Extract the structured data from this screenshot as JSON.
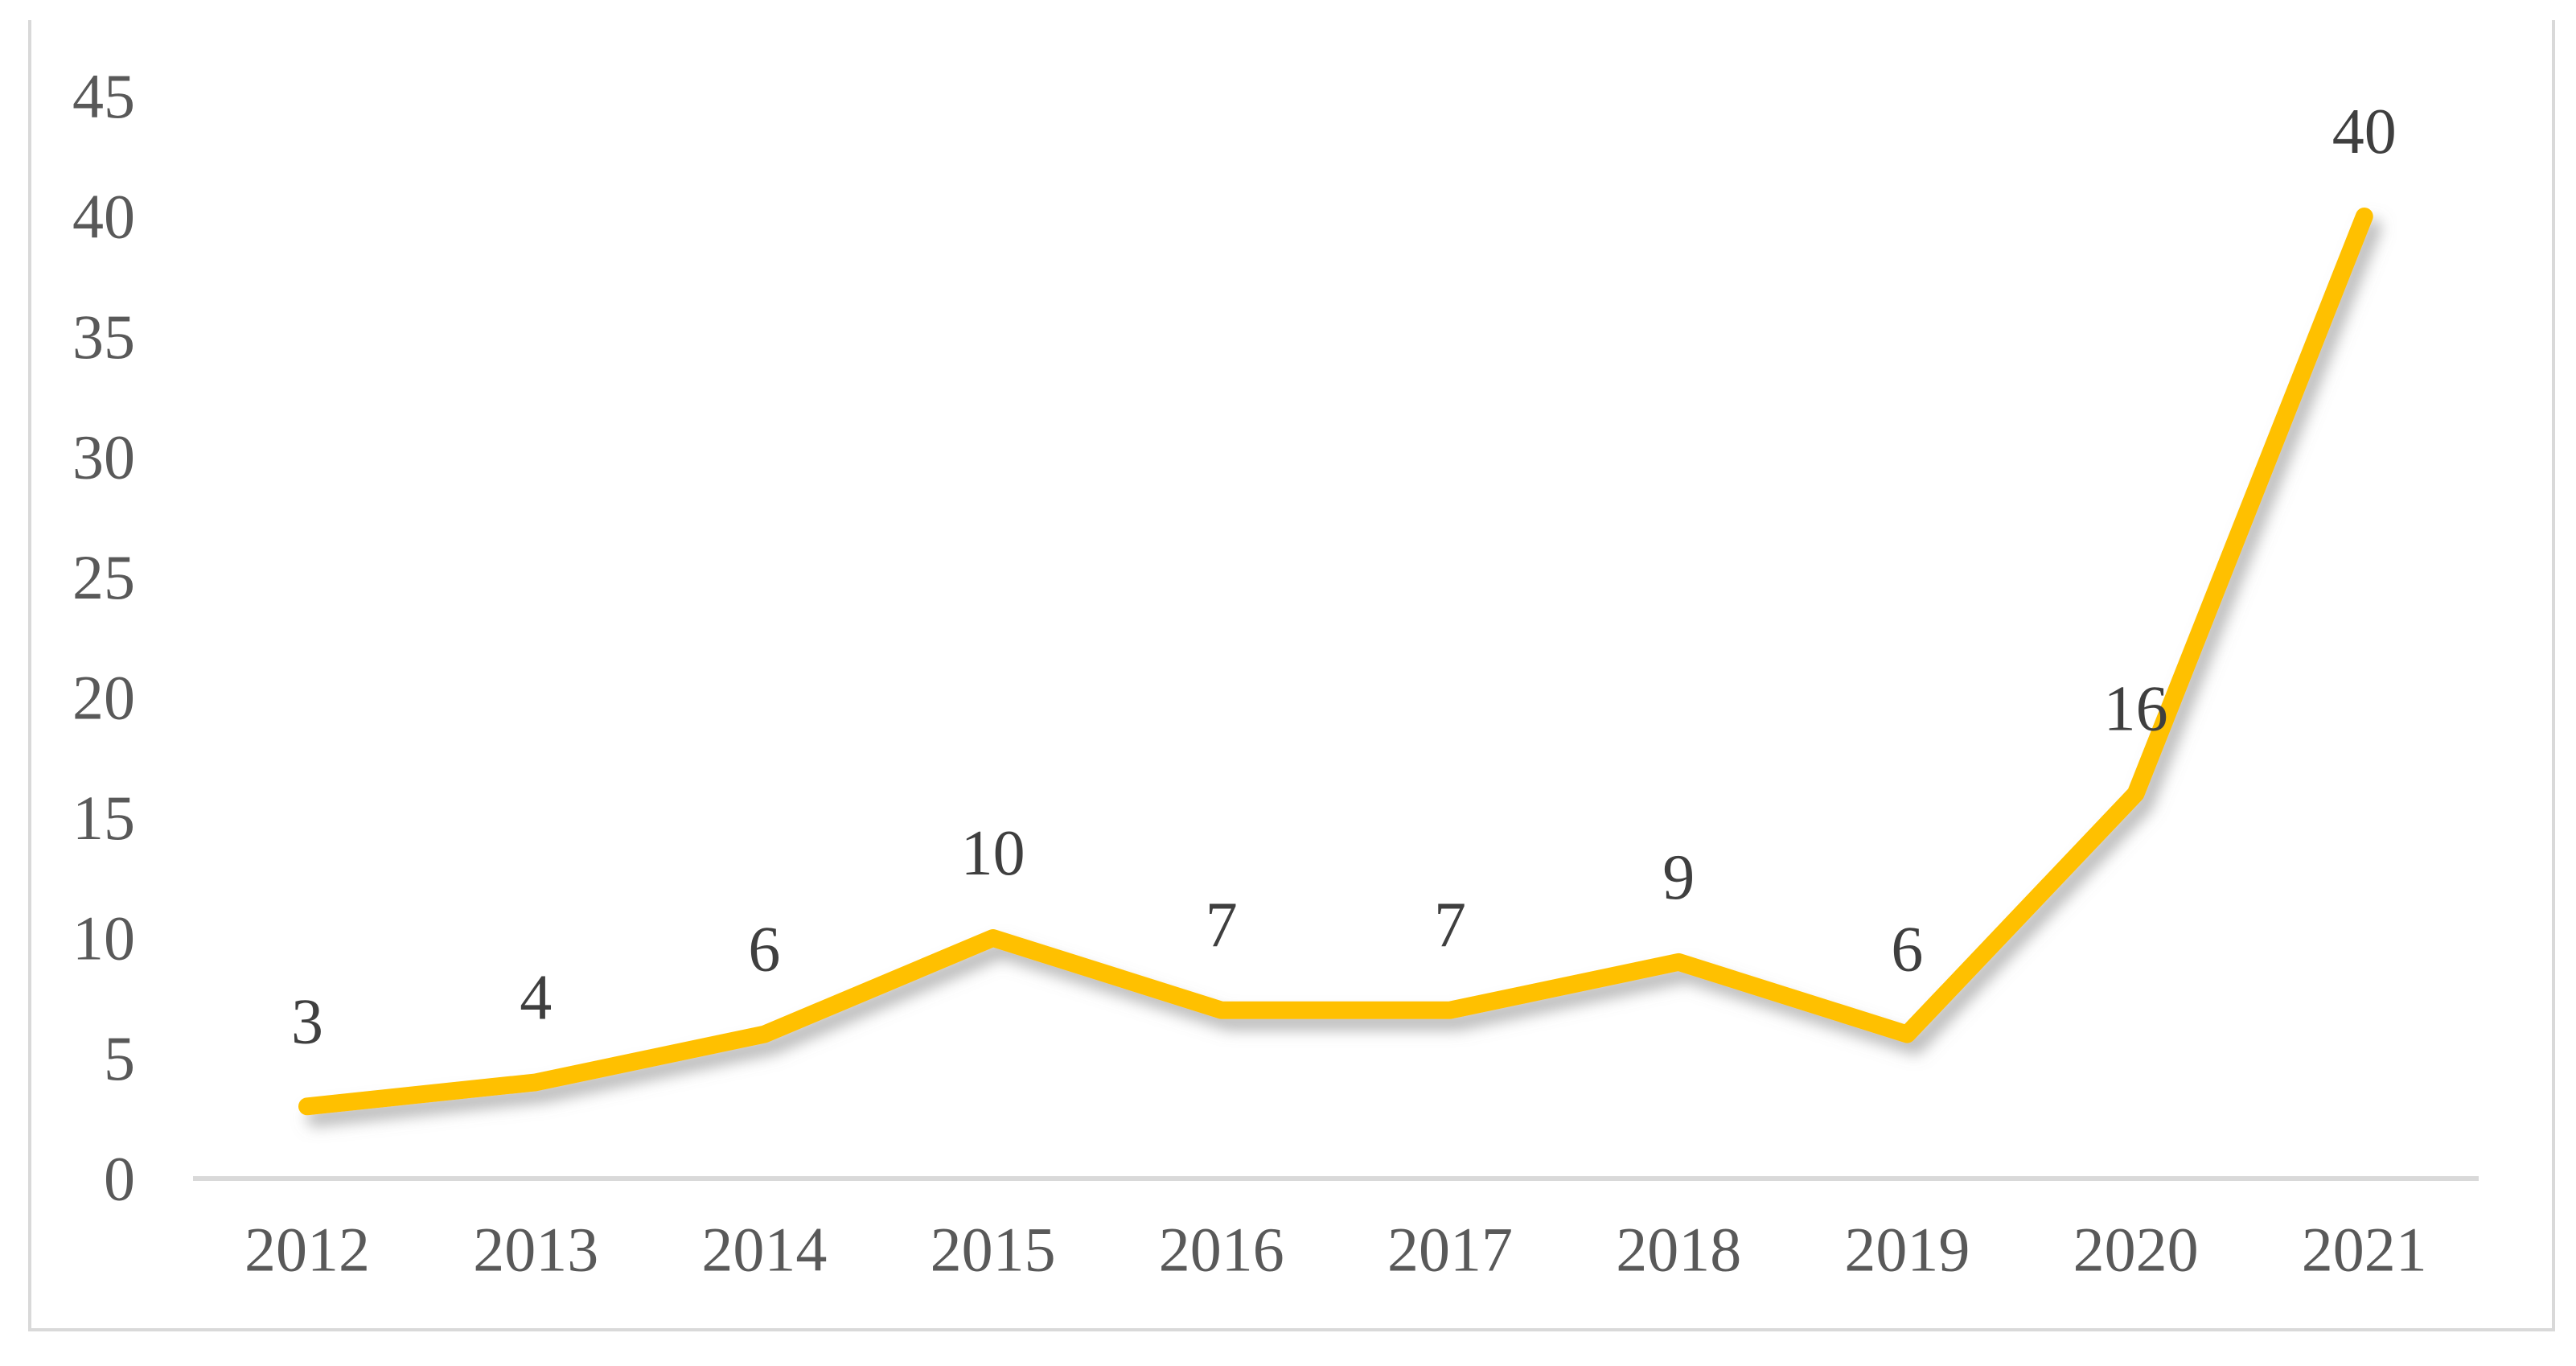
{
  "figure": {
    "background_color": "#ffffff",
    "frame_color": "#d9d9d9"
  },
  "chart_data": {
    "type": "line",
    "title": "",
    "xlabel": "",
    "ylabel": "",
    "categories": [
      "2012",
      "2013",
      "2014",
      "2015",
      "2016",
      "2017",
      "2018",
      "2019",
      "2020",
      "2021"
    ],
    "series": [
      {
        "name": "",
        "values": [
          3,
          4,
          6,
          10,
          7,
          7,
          9,
          6,
          16,
          40
        ]
      }
    ],
    "data_labels": [
      "3",
      "4",
      "6",
      "10",
      "7",
      "7",
      "9",
      "6",
      "16",
      "40"
    ],
    "data_labels_visible": true,
    "ylim": [
      0,
      45
    ],
    "ytick_step": 5,
    "ytick_labels": [
      "0",
      "5",
      "10",
      "15",
      "20",
      "25",
      "30",
      "35",
      "40",
      "45"
    ],
    "grid": false,
    "legend": "none",
    "markers": "none",
    "line_shadow": true,
    "line_color": "#FFC000",
    "shadow_color": "#808080",
    "data_label_color": "#3f3f3f",
    "tick_label_color": "#595959",
    "axis_line_color": "#d9d9d9"
  }
}
